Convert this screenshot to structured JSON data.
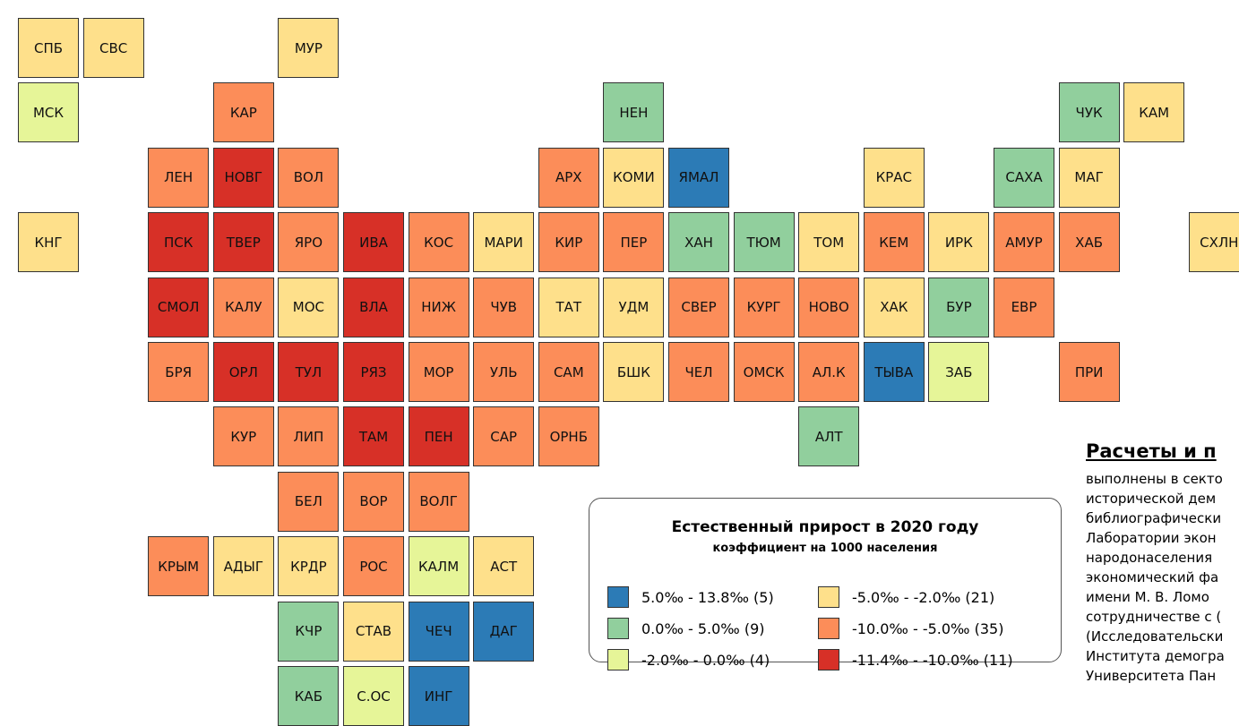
{
  "legend": {
    "title": "Естественный прирост в 2020 году",
    "subtitle": "коэффициент на 1000 населения",
    "classes": [
      {
        "label": "5.0‰ - 13.8‰ (5)",
        "color": "#2c7bb6"
      },
      {
        "label": "0.0‰ - 5.0‰ (9)",
        "color": "#91cf9d"
      },
      {
        "label": "-2.0‰ - 0.0‰ (4)",
        "color": "#e6f598"
      },
      {
        "label": "-5.0‰ - -2.0‰ (21)",
        "color": "#fee08b"
      },
      {
        "label": "-10.0‰ - -5.0‰ (35)",
        "color": "#fc8d59"
      },
      {
        "label": "-11.4‰ - -10.0‰ (11)",
        "color": "#d73027"
      }
    ]
  },
  "tiles": [
    {
      "label": "СПБ",
      "class": 3
    },
    {
      "label": "СВС",
      "class": 3
    },
    {
      "label": "МУР",
      "class": 3
    },
    {
      "label": "МСК",
      "class": 2
    },
    {
      "label": "КАР",
      "class": 4
    },
    {
      "label": "НЕН",
      "class": 1
    },
    {
      "label": "ЧУК",
      "class": 1
    },
    {
      "label": "КАМ",
      "class": 3
    },
    {
      "label": "ЛЕН",
      "class": 4
    },
    {
      "label": "НОВГ",
      "class": 5
    },
    {
      "label": "ВОЛ",
      "class": 4
    },
    {
      "label": "АРХ",
      "class": 4
    },
    {
      "label": "КОМИ",
      "class": 3
    },
    {
      "label": "ЯМАЛ",
      "class": 0
    },
    {
      "label": "КРАС",
      "class": 3
    },
    {
      "label": "САХА",
      "class": 1
    },
    {
      "label": "МАГ",
      "class": 3
    },
    {
      "label": "КНГ",
      "class": 3
    },
    {
      "label": "ПСК",
      "class": 5
    },
    {
      "label": "ТВЕР",
      "class": 5
    },
    {
      "label": "ЯРО",
      "class": 4
    },
    {
      "label": "ИВА",
      "class": 5
    },
    {
      "label": "КОС",
      "class": 4
    },
    {
      "label": "МАРИ",
      "class": 3
    },
    {
      "label": "КИР",
      "class": 4
    },
    {
      "label": "ПЕР",
      "class": 4
    },
    {
      "label": "ХАН",
      "class": 1
    },
    {
      "label": "ТЮМ",
      "class": 1
    },
    {
      "label": "ТОМ",
      "class": 3
    },
    {
      "label": "КЕМ",
      "class": 4
    },
    {
      "label": "ИРК",
      "class": 3
    },
    {
      "label": "АМУР",
      "class": 4
    },
    {
      "label": "ХАБ",
      "class": 4
    },
    {
      "label": "СХЛН",
      "class": 3
    },
    {
      "label": "СМОЛ",
      "class": 5
    },
    {
      "label": "КАЛУ",
      "class": 4
    },
    {
      "label": "МОС",
      "class": 3
    },
    {
      "label": "ВЛА",
      "class": 5
    },
    {
      "label": "НИЖ",
      "class": 4
    },
    {
      "label": "ЧУВ",
      "class": 4
    },
    {
      "label": "ТАТ",
      "class": 3
    },
    {
      "label": "УДМ",
      "class": 3
    },
    {
      "label": "СВЕР",
      "class": 4
    },
    {
      "label": "КУРГ",
      "class": 4
    },
    {
      "label": "НОВО",
      "class": 4
    },
    {
      "label": "ХАК",
      "class": 3
    },
    {
      "label": "БУР",
      "class": 1
    },
    {
      "label": "ЕВР",
      "class": 4
    },
    {
      "label": "БРЯ",
      "class": 4
    },
    {
      "label": "ОРЛ",
      "class": 5
    },
    {
      "label": "ТУЛ",
      "class": 5
    },
    {
      "label": "РЯЗ",
      "class": 5
    },
    {
      "label": "МОР",
      "class": 4
    },
    {
      "label": "УЛЬ",
      "class": 4
    },
    {
      "label": "САМ",
      "class": 4
    },
    {
      "label": "БШК",
      "class": 3
    },
    {
      "label": "ЧЕЛ",
      "class": 4
    },
    {
      "label": "ОМСК",
      "class": 4
    },
    {
      "label": "АЛ.К",
      "class": 4
    },
    {
      "label": "ТЫВА",
      "class": 0
    },
    {
      "label": "ЗАБ",
      "class": 2
    },
    {
      "label": "ПРИ",
      "class": 4
    },
    {
      "label": "КУР",
      "class": 4
    },
    {
      "label": "ЛИП",
      "class": 4
    },
    {
      "label": "ТАМ",
      "class": 5
    },
    {
      "label": "ПЕН",
      "class": 5
    },
    {
      "label": "САР",
      "class": 4
    },
    {
      "label": "ОРНБ",
      "class": 4
    },
    {
      "label": "АЛТ",
      "class": 1
    },
    {
      "label": "БЕЛ",
      "class": 4
    },
    {
      "label": "ВОР",
      "class": 4
    },
    {
      "label": "ВОЛГ",
      "class": 4
    },
    {
      "label": "КРЫМ",
      "class": 4
    },
    {
      "label": "АДЫГ",
      "class": 3
    },
    {
      "label": "КРДР",
      "class": 3
    },
    {
      "label": "РОС",
      "class": 4
    },
    {
      "label": "КАЛМ",
      "class": 2
    },
    {
      "label": "АСТ",
      "class": 3
    },
    {
      "label": "КЧР",
      "class": 1
    },
    {
      "label": "СТАВ",
      "class": 3
    },
    {
      "label": "ЧЕЧ",
      "class": 0
    },
    {
      "label": "ДАГ",
      "class": 0
    },
    {
      "label": "КАБ",
      "class": 1
    },
    {
      "label": "С.ОС",
      "class": 2
    },
    {
      "label": "ИНГ",
      "class": 0
    }
  ],
  "note": {
    "heading": "Расчеты и п",
    "lines": [
      "выполнены в секто",
      "исторической дем",
      "библиографически",
      "Лаборатории экон",
      "народонаселения",
      "экономический фа",
      "имени М. В. Ломо",
      "сотрудничестве с (",
      "(Исследовательски",
      "Института демогра",
      "Университета Пан"
    ]
  }
}
